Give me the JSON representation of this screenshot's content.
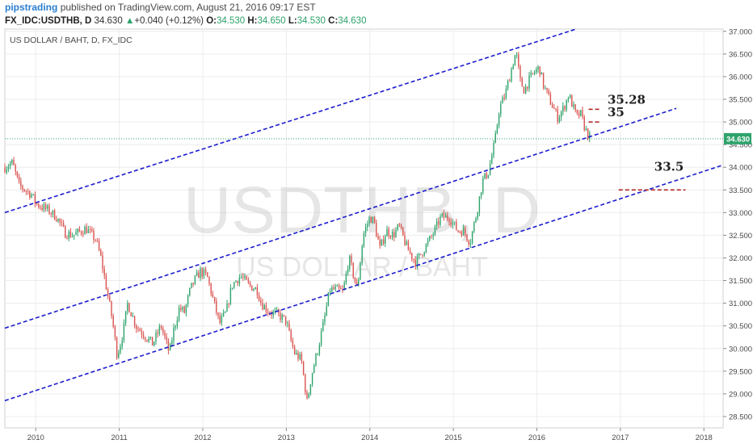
{
  "header": {
    "author": "pipstrading",
    "published_text": "published on TradingView.com, August 21, 2016 09:17 EST",
    "symbol": "FX_IDC:USDTHB, D",
    "price": "34.630",
    "change_arrow": "▲",
    "change": "+0.040 (+0.12%)",
    "o_label": "O:",
    "o": "34.530",
    "h_label": "H:",
    "h": "34.650",
    "l_label": "L:",
    "l": "34.530",
    "c_label": "C:",
    "c": "34.630"
  },
  "panel_label": "US DOLLAR / BAHT, D, FX_IDC",
  "watermark": {
    "line1": "USDTHB, D",
    "line2": "US DOLLAR / BAHT"
  },
  "colors": {
    "up": "#2ea36b",
    "down": "#d9534f",
    "trend": "#1c1ccf",
    "level": "#b11b1b",
    "last_price_bg": "#2ea36b",
    "author": "#2a7fd1"
  },
  "chart_data": {
    "type": "candlestick",
    "x_axis": {
      "ticks": [
        "2010",
        "2011",
        "2012",
        "2013",
        "2014",
        "2015",
        "2016",
        "2017",
        "2018"
      ],
      "range": [
        2009.63,
        2018.23
      ]
    },
    "y_axis": {
      "side": "right",
      "ticks": [
        "28.500",
        "29.000",
        "29.500",
        "30.000",
        "30.500",
        "31.000",
        "31.500",
        "32.000",
        "32.500",
        "33.000",
        "33.500",
        "34.000",
        "34.500",
        "35.000",
        "35.500",
        "36.000",
        "36.500",
        "37.000"
      ],
      "range": [
        28.25,
        37.05
      ]
    },
    "last_price": "34.630",
    "price_path": [
      [
        2009.63,
        34.0
      ],
      [
        2009.72,
        34.1
      ],
      [
        2009.8,
        33.6
      ],
      [
        2009.95,
        33.4
      ],
      [
        2010.0,
        33.2
      ],
      [
        2010.15,
        33.05
      ],
      [
        2010.25,
        32.9
      ],
      [
        2010.35,
        32.55
      ],
      [
        2010.45,
        32.5
      ],
      [
        2010.6,
        32.65
      ],
      [
        2010.72,
        32.4
      ],
      [
        2010.78,
        32.0
      ],
      [
        2010.85,
        31.3
      ],
      [
        2010.92,
        30.6
      ],
      [
        2010.97,
        29.9
      ],
      [
        2011.0,
        30.0
      ],
      [
        2011.05,
        30.4
      ],
      [
        2011.1,
        31.0
      ],
      [
        2011.2,
        30.5
      ],
      [
        2011.3,
        30.3
      ],
      [
        2011.4,
        30.1
      ],
      [
        2011.5,
        30.5
      ],
      [
        2011.6,
        29.9
      ],
      [
        2011.65,
        30.4
      ],
      [
        2011.72,
        30.9
      ],
      [
        2011.78,
        30.8
      ],
      [
        2011.85,
        31.3
      ],
      [
        2011.9,
        31.5
      ],
      [
        2011.97,
        31.7
      ],
      [
        2012.05,
        31.6
      ],
      [
        2012.15,
        30.9
      ],
      [
        2012.2,
        30.55
      ],
      [
        2012.28,
        30.8
      ],
      [
        2012.35,
        31.4
      ],
      [
        2012.45,
        31.6
      ],
      [
        2012.55,
        31.4
      ],
      [
        2012.65,
        31.3
      ],
      [
        2012.7,
        31.0
      ],
      [
        2012.8,
        30.8
      ],
      [
        2012.9,
        30.75
      ],
      [
        2013.0,
        30.6
      ],
      [
        2013.05,
        30.2
      ],
      [
        2013.1,
        29.9
      ],
      [
        2013.18,
        29.75
      ],
      [
        2013.25,
        28.8
      ],
      [
        2013.3,
        29.4
      ],
      [
        2013.38,
        30.0
      ],
      [
        2013.45,
        30.6
      ],
      [
        2013.52,
        31.3
      ],
      [
        2013.6,
        31.3
      ],
      [
        2013.68,
        31.25
      ],
      [
        2013.75,
        32.0
      ],
      [
        2013.85,
        31.3
      ],
      [
        2013.92,
        32.5
      ],
      [
        2014.0,
        32.9
      ],
      [
        2014.05,
        32.8
      ],
      [
        2014.12,
        32.2
      ],
      [
        2014.2,
        32.6
      ],
      [
        2014.28,
        32.5
      ],
      [
        2014.35,
        32.7
      ],
      [
        2014.45,
        32.2
      ],
      [
        2014.55,
        31.9
      ],
      [
        2014.65,
        32.2
      ],
      [
        2014.75,
        32.5
      ],
      [
        2014.85,
        32.9
      ],
      [
        2014.95,
        32.9
      ],
      [
        2015.05,
        32.6
      ],
      [
        2015.12,
        32.6
      ],
      [
        2015.2,
        32.35
      ],
      [
        2015.28,
        33.0
      ],
      [
        2015.35,
        33.7
      ],
      [
        2015.42,
        33.9
      ],
      [
        2015.5,
        34.6
      ],
      [
        2015.55,
        35.3
      ],
      [
        2015.62,
        35.6
      ],
      [
        2015.7,
        36.2
      ],
      [
        2015.75,
        36.55
      ],
      [
        2015.8,
        35.9
      ],
      [
        2015.85,
        35.7
      ],
      [
        2015.9,
        35.9
      ],
      [
        2015.97,
        36.1
      ],
      [
        2016.03,
        36.2
      ],
      [
        2016.08,
        35.8
      ],
      [
        2016.15,
        35.5
      ],
      [
        2016.2,
        35.3
      ],
      [
        2016.25,
        35.1
      ],
      [
        2016.32,
        35.3
      ],
      [
        2016.38,
        35.6
      ],
      [
        2016.42,
        35.4
      ],
      [
        2016.48,
        35.1
      ],
      [
        2016.52,
        35.2
      ],
      [
        2016.56,
        34.95
      ],
      [
        2016.6,
        34.75
      ],
      [
        2016.64,
        34.63
      ]
    ],
    "trendlines": [
      {
        "name": "upper-channel",
        "from": [
          2009.63,
          33.0
        ],
        "to": [
          2016.47,
          37.05
        ]
      },
      {
        "name": "middle-channel",
        "from": [
          2009.63,
          30.45
        ],
        "to": [
          2017.67,
          35.3
        ]
      },
      {
        "name": "lower-channel",
        "from": [
          2009.63,
          28.85
        ],
        "to": [
          2018.23,
          34.05
        ]
      }
    ],
    "levels": [
      {
        "label": "35.28",
        "value": 35.28,
        "x_from": 2016.62,
        "x_to": 2016.75
      },
      {
        "label": "35",
        "value": 35.0,
        "x_from": 2016.62,
        "x_to": 2016.75
      },
      {
        "label": "33.5",
        "value": 33.5,
        "x_from": 2016.98,
        "x_to": 2017.78
      }
    ]
  }
}
